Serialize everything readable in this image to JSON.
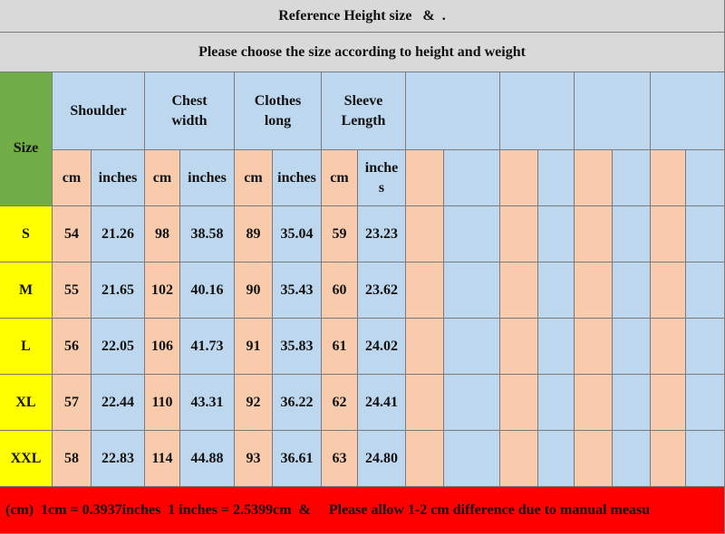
{
  "header": {
    "title": "Reference Height size   &  .",
    "subtitle": "Please choose the size according to height and weight"
  },
  "table": {
    "size_label": "Size",
    "groups": [
      "Shoulder",
      "Chest width",
      "Clothes long",
      "Sleeve Length"
    ],
    "units": [
      "cm",
      "inches",
      "cm",
      "inches",
      "cm",
      "inches",
      "cm",
      "inche s"
    ],
    "rows": [
      [
        "S",
        "54",
        "21.26",
        "98",
        "38.58",
        "89",
        "35.04",
        "59",
        "23.23"
      ],
      [
        "M",
        "55",
        "21.65",
        "102",
        "40.16",
        "90",
        "35.43",
        "60",
        "23.62"
      ],
      [
        "L",
        "56",
        "22.05",
        "106",
        "41.73",
        "91",
        "35.83",
        "61",
        "24.02"
      ],
      [
        "XL",
        "57",
        "22.44",
        "110",
        "43.31",
        "92",
        "36.22",
        "62",
        "24.41"
      ],
      [
        "XXL",
        "58",
        "22.83",
        "114",
        "44.88",
        "93",
        "36.61",
        "63",
        "24.80"
      ]
    ]
  },
  "footer": "(cm)  1cm = 0.3937inches  1 inches = 2.5399cm  &     Please allow 1-2 cm difference due to manual measu"
}
